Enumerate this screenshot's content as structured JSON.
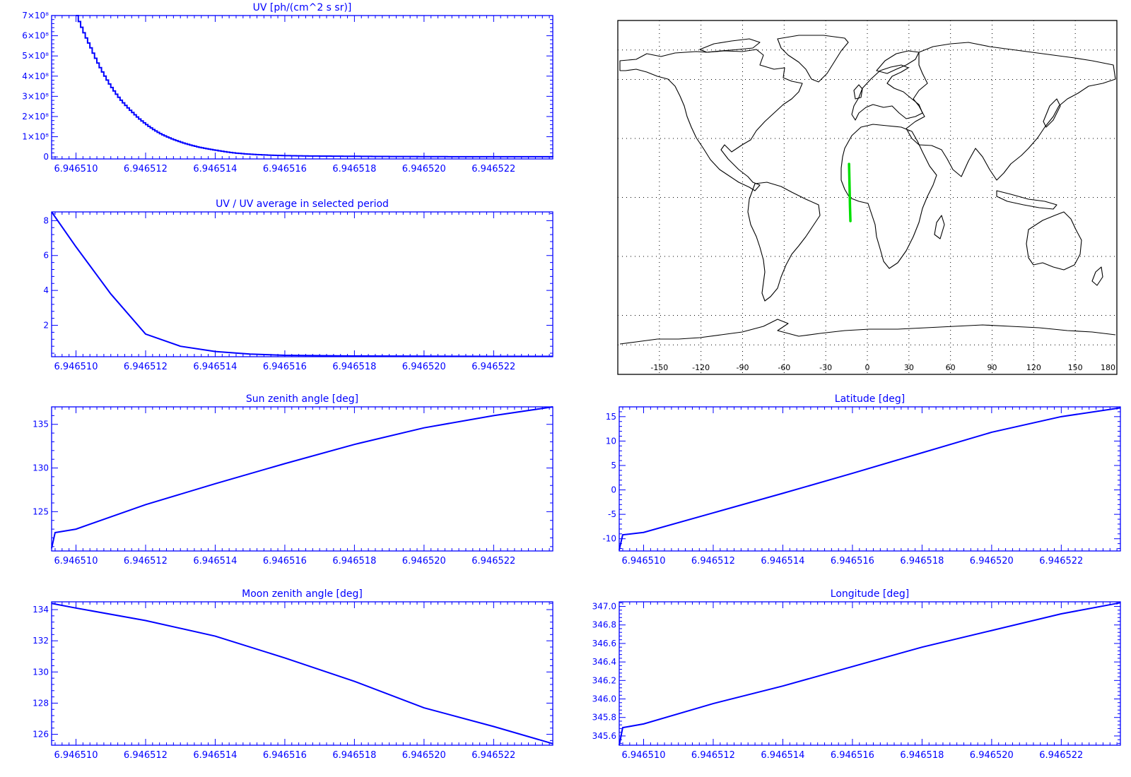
{
  "colors": {
    "axis": "#0000ff",
    "trace": "#0000ff",
    "map_outline": "#000000",
    "map_track": "#00e000",
    "map_grid": "#000000",
    "background": "#ffffff"
  },
  "map": {
    "lon_tick_labels": [
      "-150",
      "-120",
      "-90",
      "-60",
      "-30",
      "0",
      "30",
      "60",
      "90",
      "120",
      "150",
      "180"
    ],
    "projection": "cylindrical",
    "grid": "dotted",
    "track": {
      "lon": [
        -12.2,
        -12.5,
        -12.8,
        -13.2
      ],
      "lat": [
        -12,
        -5,
        5,
        17
      ]
    }
  },
  "chart_data": [
    {
      "id": "uv",
      "type": "line",
      "step": true,
      "title": "UV [ph/(cm^2 s sr)]",
      "xlabel": "",
      "ylabel": "",
      "xlim": [
        6.9465093,
        6.9465237
      ],
      "ylim": [
        -10000000.0,
        700000000.0
      ],
      "x_ticks": [
        6.94651,
        6.946512,
        6.946514,
        6.946516,
        6.946518,
        6.94652,
        6.946522
      ],
      "x_tick_labels": [
        "6.946510",
        "6.946512",
        "6.946514",
        "6.946516",
        "6.946518",
        "6.946520",
        "6.946522"
      ],
      "y_ticks": [
        0,
        100000000.0,
        200000000.0,
        300000000.0,
        400000000.0,
        500000000.0,
        600000000.0,
        700000000.0
      ],
      "y_tick_labels": [
        "0",
        "1×10⁸",
        "2×10⁸",
        "3×10⁸",
        "4×10⁸",
        "5×10⁸",
        "6×10⁸",
        "7×10⁸"
      ],
      "x": [
        6.94651,
        6.9465104,
        6.9465108,
        6.9465112,
        6.9465116,
        6.946512,
        6.9465124,
        6.9465128,
        6.9465132,
        6.9465136,
        6.946514,
        6.9465145,
        6.946515,
        6.9465155,
        6.946516,
        6.946517,
        6.946518,
        6.946519,
        6.94652,
        6.946521,
        6.946522,
        6.9465237
      ],
      "y": [
        700000000.0,
        540000000.0,
        400000000.0,
        295000000.0,
        220000000.0,
        160000000.0,
        115000000.0,
        85000000.0,
        62000000.0,
        45000000.0,
        33000000.0,
        20000000.0,
        13000000.0,
        9000000.0,
        6000000.0,
        4000000.0,
        3000000.0,
        2000000.0,
        1500000.0,
        1000000.0,
        1000000.0,
        800000.0
      ]
    },
    {
      "id": "uv_ratio",
      "type": "line",
      "title": "UV / UV average in selected period",
      "xlabel": "",
      "ylabel": "",
      "xlim": [
        6.9465093,
        6.9465237
      ],
      "ylim": [
        0.2,
        8.5
      ],
      "x_ticks": [
        6.94651,
        6.946512,
        6.946514,
        6.946516,
        6.946518,
        6.94652,
        6.946522
      ],
      "x_tick_labels": [
        "6.946510",
        "6.946512",
        "6.946514",
        "6.946516",
        "6.946518",
        "6.946520",
        "6.946522"
      ],
      "y_ticks": [
        2,
        4,
        6,
        8
      ],
      "y_tick_labels": [
        "2",
        "4",
        "6",
        "8"
      ],
      "x": [
        6.9465093,
        6.94651,
        6.946511,
        6.946512,
        6.946513,
        6.946514,
        6.946515,
        6.946516,
        6.946518,
        6.94652,
        6.946522,
        6.9465237
      ],
      "y": [
        8.5,
        6.5,
        3.8,
        1.5,
        0.8,
        0.5,
        0.35,
        0.28,
        0.24,
        0.23,
        0.22,
        0.22
      ]
    },
    {
      "id": "sza",
      "type": "line",
      "title": "Sun zenith angle [deg]",
      "xlabel": "",
      "ylabel": "",
      "xlim": [
        6.9465093,
        6.9465237
      ],
      "ylim": [
        120.5,
        137.0
      ],
      "x_ticks": [
        6.94651,
        6.946512,
        6.946514,
        6.946516,
        6.946518,
        6.94652,
        6.946522
      ],
      "x_tick_labels": [
        "6.946510",
        "6.946512",
        "6.946514",
        "6.946516",
        "6.946518",
        "6.946520",
        "6.946522"
      ],
      "y_ticks": [
        125,
        130,
        135
      ],
      "y_tick_labels": [
        "125",
        "130",
        "135"
      ],
      "x": [
        6.9465093,
        6.9465094,
        6.94651,
        6.946512,
        6.946514,
        6.946516,
        6.946518,
        6.94652,
        6.946522,
        6.9465237
      ],
      "y": [
        120.8,
        122.6,
        123.0,
        125.8,
        128.2,
        130.5,
        132.7,
        134.6,
        136.0,
        137.0
      ]
    },
    {
      "id": "lat",
      "type": "line",
      "title": "Latitude [deg]",
      "xlabel": "",
      "ylabel": "",
      "xlim": [
        6.9465093,
        6.9465237
      ],
      "ylim": [
        -12.5,
        17.0
      ],
      "x_ticks": [
        6.94651,
        6.946512,
        6.946514,
        6.946516,
        6.946518,
        6.94652,
        6.946522
      ],
      "x_tick_labels": [
        "6.946510",
        "6.946512",
        "6.946514",
        "6.946516",
        "6.946518",
        "6.946520",
        "6.946522"
      ],
      "y_ticks": [
        -10,
        -5,
        0,
        5,
        10,
        15
      ],
      "y_tick_labels": [
        "-10",
        "-5",
        "0",
        "5",
        "10",
        "15"
      ],
      "x": [
        6.9465093,
        6.9465094,
        6.94651,
        6.946512,
        6.946514,
        6.946516,
        6.946518,
        6.94652,
        6.946522,
        6.9465237
      ],
      "y": [
        -12.3,
        -9.2,
        -8.7,
        -4.7,
        -0.7,
        3.4,
        7.6,
        11.8,
        15.0,
        16.8
      ]
    },
    {
      "id": "mza",
      "type": "line",
      "title": "Moon zenith angle [deg]",
      "xlabel": "",
      "ylabel": "",
      "xlim": [
        6.9465093,
        6.9465237
      ],
      "ylim": [
        125.3,
        134.5
      ],
      "x_ticks": [
        6.94651,
        6.946512,
        6.946514,
        6.946516,
        6.946518,
        6.94652,
        6.946522
      ],
      "x_tick_labels": [
        "6.946510",
        "6.946512",
        "6.946514",
        "6.946516",
        "6.946518",
        "6.946520",
        "6.946522"
      ],
      "y_ticks": [
        126,
        128,
        130,
        132,
        134
      ],
      "y_tick_labels": [
        "126",
        "128",
        "130",
        "132",
        "134"
      ],
      "x": [
        6.9465093,
        6.94651,
        6.946512,
        6.946514,
        6.946516,
        6.946518,
        6.94652,
        6.946522,
        6.9465237
      ],
      "y": [
        134.4,
        134.1,
        133.3,
        132.3,
        130.9,
        129.4,
        127.7,
        126.5,
        125.4
      ]
    },
    {
      "id": "lon",
      "type": "line",
      "title": "Longitude [deg]",
      "xlabel": "",
      "ylabel": "",
      "xlim": [
        6.9465093,
        6.9465237
      ],
      "ylim": [
        345.5,
        347.05
      ],
      "x_ticks": [
        6.94651,
        6.946512,
        6.946514,
        6.946516,
        6.946518,
        6.94652,
        6.946522
      ],
      "x_tick_labels": [
        "6.946510",
        "6.946512",
        "6.946514",
        "6.946516",
        "6.946518",
        "6.946520",
        "6.946522"
      ],
      "y_ticks": [
        345.6,
        345.8,
        346.0,
        346.2,
        346.4,
        346.6,
        346.8,
        347.0
      ],
      "y_tick_labels": [
        "345.6",
        "345.8",
        "346.0",
        "346.2",
        "346.4",
        "346.6",
        "346.8",
        "347.0"
      ],
      "x": [
        6.9465093,
        6.9465094,
        6.94651,
        6.946512,
        6.946514,
        6.946516,
        6.946518,
        6.94652,
        6.946522,
        6.9465237
      ],
      "y": [
        345.5,
        345.69,
        345.73,
        345.95,
        346.14,
        346.35,
        346.56,
        346.74,
        346.92,
        347.04
      ]
    }
  ]
}
